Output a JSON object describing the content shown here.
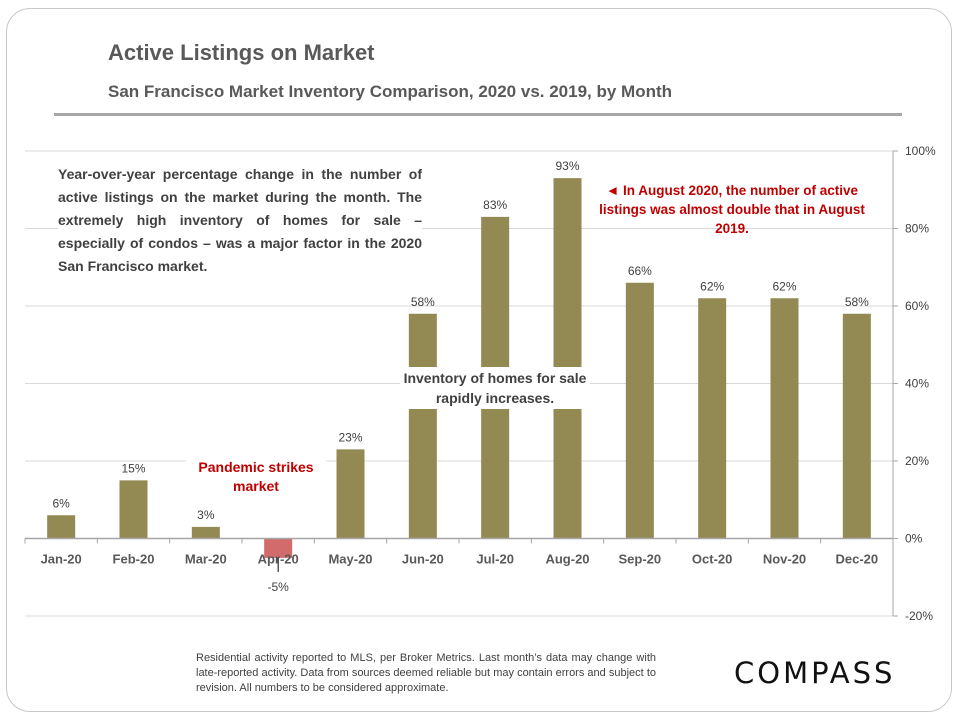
{
  "title": "Active Listings on Market",
  "subtitle": "San Francisco Market Inventory Comparison,  2020 vs. 2019, by Month",
  "note": "Year-over-year percentage change in the number of active listings on the market during the month. The extremely high inventory of homes for sale – especially of condos – was a major factor in the 2020 San Francisco market.",
  "callout": "◄ In August 2020, the number of active listings was almost double that in August 2019.",
  "pandemic_label": "Pandemic strikes market",
  "inventory_label": "Inventory of homes for sale rapidly increases.",
  "footer": "Residential activity reported to MLS, per Broker Metrics. Last month’s data may change with late-reported activity. Data from sources deemed reliable but may contain errors and subject to revision. All numbers to be considered approximate.",
  "logo": "COMPASS",
  "chart_data": {
    "type": "bar",
    "categories": [
      "Jan-20",
      "Feb-20",
      "Mar-20",
      "Apr-20",
      "May-20",
      "Jun-20",
      "Jul-20",
      "Aug-20",
      "Sep-20",
      "Oct-20",
      "Nov-20",
      "Dec-20"
    ],
    "values": [
      6,
      15,
      3,
      -5,
      23,
      58,
      83,
      93,
      66,
      62,
      62,
      58
    ],
    "data_labels": [
      "6%",
      "15%",
      "3%",
      "-5%",
      "23%",
      "58%",
      "83%",
      "93%",
      "66%",
      "62%",
      "62%",
      "58%"
    ],
    "ylim": [
      -20,
      100
    ],
    "yticks": [
      "100%",
      "80%",
      "60%",
      "40%",
      "20%",
      "0%",
      "-20%"
    ],
    "ytick_values": [
      100,
      80,
      60,
      40,
      20,
      0,
      -20
    ],
    "y_axis_side": "right",
    "grid": true,
    "colors": {
      "positive": "#938953",
      "negative": "#d26b6b",
      "annotation": "#c00000"
    }
  }
}
